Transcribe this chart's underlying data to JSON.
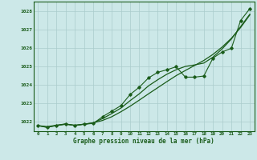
{
  "x": [
    0,
    1,
    2,
    3,
    4,
    5,
    6,
    7,
    8,
    9,
    10,
    11,
    12,
    13,
    14,
    15,
    16,
    17,
    18,
    19,
    20,
    21,
    22,
    23
  ],
  "y_smooth1": [
    1021.8,
    1021.75,
    1021.82,
    1021.88,
    1021.82,
    1021.88,
    1021.95,
    1022.08,
    1022.28,
    1022.55,
    1022.85,
    1023.18,
    1023.52,
    1023.85,
    1024.18,
    1024.5,
    1024.78,
    1025.05,
    1025.32,
    1025.65,
    1026.05,
    1026.52,
    1027.1,
    1027.78
  ],
  "y_smooth2": [
    1021.8,
    1021.72,
    1021.8,
    1021.88,
    1021.82,
    1021.88,
    1021.95,
    1022.18,
    1022.45,
    1022.75,
    1023.15,
    1023.52,
    1023.95,
    1024.28,
    1024.58,
    1024.82,
    1025.0,
    1025.08,
    1025.18,
    1025.5,
    1025.95,
    1026.48,
    1027.15,
    1027.82
  ],
  "y_markers": [
    1021.8,
    1021.7,
    1021.82,
    1021.9,
    1021.8,
    1021.88,
    1021.92,
    1022.28,
    1022.58,
    1022.88,
    1023.48,
    1023.88,
    1024.38,
    1024.68,
    1024.82,
    1024.98,
    1024.42,
    1024.42,
    1024.48,
    1025.45,
    1025.78,
    1025.98,
    1027.48,
    1028.12
  ],
  "bg_color": "#cce8e8",
  "grid_color": "#aacccc",
  "line_color": "#1a5c1a",
  "xlabel": "Graphe pression niveau de la mer (hPa)",
  "ylim_min": 1021.5,
  "ylim_max": 1028.5,
  "xlim_min": -0.5,
  "xlim_max": 23.5,
  "figsize": [
    3.2,
    2.0
  ],
  "dpi": 100
}
